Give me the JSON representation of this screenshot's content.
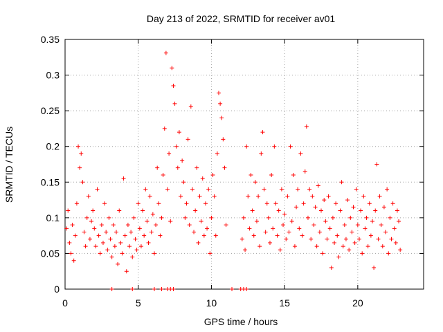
{
  "chart_data": {
    "type": "scatter",
    "title": "Day 213 of 2022, SRMTID for receiver av01",
    "xlabel": "GPS time / hours",
    "ylabel": "SRMTID / TECUs",
    "xlim": [
      0,
      24.5
    ],
    "ylim": [
      0,
      0.35
    ],
    "x_ticks": [
      0,
      5,
      10,
      15,
      20
    ],
    "y_ticks": [
      0,
      0.05,
      0.1,
      0.15,
      0.2,
      0.25,
      0.3,
      0.35
    ],
    "x_tick_labels": [
      "0",
      "5",
      "10",
      "15",
      "20"
    ],
    "y_tick_labels": [
      "0",
      "0.05",
      "0.1",
      "0.15",
      "0.2",
      "0.25",
      "0.3",
      "0.35"
    ],
    "grid": true,
    "marker": "+",
    "series_color": "#ff0000",
    "series": [
      {
        "name": "av01",
        "points": [
          [
            0.1,
            0.085
          ],
          [
            0.2,
            0.11
          ],
          [
            0.3,
            0.065
          ],
          [
            0.4,
            0.05
          ],
          [
            0.5,
            0.09
          ],
          [
            0.6,
            0.04
          ],
          [
            0.7,
            0.075
          ],
          [
            0.8,
            0.12
          ],
          [
            0.9,
            0.2
          ],
          [
            1.0,
            0.17
          ],
          [
            1.1,
            0.19
          ],
          [
            1.2,
            0.15
          ],
          [
            1.3,
            0.08
          ],
          [
            1.4,
            0.06
          ],
          [
            1.5,
            0.1
          ],
          [
            1.6,
            0.13
          ],
          [
            1.7,
            0.07
          ],
          [
            1.8,
            0.095
          ],
          [
            1.9,
            0.11
          ],
          [
            2.0,
            0.085
          ],
          [
            2.1,
            0.06
          ],
          [
            2.2,
            0.14
          ],
          [
            2.3,
            0.075
          ],
          [
            2.4,
            0.05
          ],
          [
            2.5,
            0.09
          ],
          [
            2.6,
            0.065
          ],
          [
            2.7,
            0.12
          ],
          [
            2.8,
            0.08
          ],
          [
            2.9,
            0.055
          ],
          [
            3.0,
            0.1
          ],
          [
            3.1,
            0.07
          ],
          [
            3.2,
            0.045
          ],
          [
            3.3,
            0.09
          ],
          [
            3.4,
            0.06
          ],
          [
            3.5,
            0.08
          ],
          [
            3.6,
            0.035
          ],
          [
            3.7,
            0.11
          ],
          [
            3.8,
            0.065
          ],
          [
            3.9,
            0.05
          ],
          [
            4.0,
            0.155
          ],
          [
            4.1,
            0.075
          ],
          [
            4.2,
            0.025
          ],
          [
            4.3,
            0.09
          ],
          [
            4.4,
            0.06
          ],
          [
            4.5,
            0.08
          ],
          [
            4.6,
            0.045
          ],
          [
            4.7,
            0.1
          ],
          [
            4.8,
            0.07
          ],
          [
            4.9,
            0.055
          ],
          [
            5.0,
            0.12
          ],
          [
            5.1,
            0.085
          ],
          [
            5.2,
            0.06
          ],
          [
            5.3,
            0.11
          ],
          [
            5.4,
            0.075
          ],
          [
            5.5,
            0.14
          ],
          [
            5.6,
            0.095
          ],
          [
            5.7,
            0.065
          ],
          [
            5.8,
            0.13
          ],
          [
            5.9,
            0.08
          ],
          [
            6.0,
            0.105
          ],
          [
            6.1,
            0.05
          ],
          [
            6.2,
            0.09
          ],
          [
            6.3,
            0.17
          ],
          [
            6.4,
            0.12
          ],
          [
            6.5,
            0.075
          ],
          [
            6.6,
            0.1
          ],
          [
            6.7,
            0.16
          ],
          [
            6.8,
            0.225
          ],
          [
            6.9,
            0.331
          ],
          [
            7.0,
            0.14
          ],
          [
            7.1,
            0.19
          ],
          [
            7.2,
            0.095
          ],
          [
            7.3,
            0.31
          ],
          [
            7.4,
            0.285
          ],
          [
            7.5,
            0.26
          ],
          [
            7.6,
            0.2
          ],
          [
            7.7,
            0.17
          ],
          [
            7.8,
            0.22
          ],
          [
            7.9,
            0.13
          ],
          [
            8.0,
            0.18
          ],
          [
            8.1,
            0.15
          ],
          [
            8.2,
            0.1
          ],
          [
            8.3,
            0.12
          ],
          [
            8.4,
            0.21
          ],
          [
            8.5,
            0.09
          ],
          [
            8.6,
            0.256
          ],
          [
            8.7,
            0.14
          ],
          [
            8.8,
            0.08
          ],
          [
            8.9,
            0.11
          ],
          [
            9.0,
            0.17
          ],
          [
            9.1,
            0.065
          ],
          [
            9.2,
            0.13
          ],
          [
            9.3,
            0.095
          ],
          [
            9.4,
            0.155
          ],
          [
            9.5,
            0.075
          ],
          [
            9.6,
            0.12
          ],
          [
            9.7,
            0.085
          ],
          [
            9.8,
            0.14
          ],
          [
            9.9,
            0.05
          ],
          [
            10.0,
            0.1
          ],
          [
            10.1,
            0.16
          ],
          [
            10.2,
            0.13
          ],
          [
            10.3,
            0.075
          ],
          [
            10.4,
            0.19
          ],
          [
            10.5,
            0.275
          ],
          [
            10.6,
            0.26
          ],
          [
            10.7,
            0.24
          ],
          [
            10.8,
            0.21
          ],
          [
            10.9,
            0.17
          ],
          [
            11.0,
            0.09
          ],
          [
            12.1,
            0.07
          ],
          [
            12.2,
            0.1
          ],
          [
            12.3,
            0.055
          ],
          [
            12.4,
            0.2
          ],
          [
            12.5,
            0.13
          ],
          [
            12.6,
            0.085
          ],
          [
            12.7,
            0.16
          ],
          [
            12.8,
            0.11
          ],
          [
            12.9,
            0.075
          ],
          [
            13.0,
            0.15
          ],
          [
            13.1,
            0.095
          ],
          [
            13.2,
            0.13
          ],
          [
            13.3,
            0.06
          ],
          [
            13.4,
            0.19
          ],
          [
            13.5,
            0.22
          ],
          [
            13.6,
            0.14
          ],
          [
            13.7,
            0.08
          ],
          [
            13.8,
            0.12
          ],
          [
            13.9,
            0.1
          ],
          [
            14.0,
            0.065
          ],
          [
            14.1,
            0.16
          ],
          [
            14.2,
            0.085
          ],
          [
            14.3,
            0.2
          ],
          [
            14.4,
            0.12
          ],
          [
            14.5,
            0.075
          ],
          [
            14.6,
            0.11
          ],
          [
            14.7,
            0.055
          ],
          [
            14.8,
            0.14
          ],
          [
            14.9,
            0.09
          ],
          [
            15.0,
            0.105
          ],
          [
            15.1,
            0.07
          ],
          [
            15.2,
            0.13
          ],
          [
            15.3,
            0.08
          ],
          [
            15.4,
            0.2
          ],
          [
            15.5,
            0.095
          ],
          [
            15.6,
            0.16
          ],
          [
            15.7,
            0.06
          ],
          [
            15.8,
            0.115
          ],
          [
            15.9,
            0.14
          ],
          [
            16.0,
            0.085
          ],
          [
            16.1,
            0.19
          ],
          [
            16.2,
            0.075
          ],
          [
            16.3,
            0.12
          ],
          [
            16.4,
            0.165
          ],
          [
            16.5,
            0.228
          ],
          [
            16.6,
            0.1
          ],
          [
            16.7,
            0.14
          ],
          [
            16.8,
            0.07
          ],
          [
            16.9,
            0.13
          ],
          [
            17.0,
            0.09
          ],
          [
            17.1,
            0.115
          ],
          [
            17.2,
            0.06
          ],
          [
            17.3,
            0.145
          ],
          [
            17.4,
            0.08
          ],
          [
            17.5,
            0.11
          ],
          [
            17.6,
            0.05
          ],
          [
            17.7,
            0.125
          ],
          [
            17.8,
            0.095
          ],
          [
            17.9,
            0.07
          ],
          [
            18.0,
            0.13
          ],
          [
            18.1,
            0.085
          ],
          [
            18.2,
            0.03
          ],
          [
            18.3,
            0.1
          ],
          [
            18.4,
            0.065
          ],
          [
            18.5,
            0.12
          ],
          [
            18.6,
            0.075
          ],
          [
            18.7,
            0.045
          ],
          [
            18.8,
            0.11
          ],
          [
            18.9,
            0.15
          ],
          [
            19.0,
            0.06
          ],
          [
            19.1,
            0.09
          ],
          [
            19.2,
            0.07
          ],
          [
            19.3,
            0.125
          ],
          [
            19.4,
            0.055
          ],
          [
            19.5,
            0.1
          ],
          [
            19.6,
            0.08
          ],
          [
            19.7,
            0.115
          ],
          [
            19.8,
            0.065
          ],
          [
            19.9,
            0.14
          ],
          [
            20.0,
            0.09
          ],
          [
            20.1,
            0.07
          ],
          [
            20.2,
            0.11
          ],
          [
            20.3,
            0.05
          ],
          [
            20.4,
            0.13
          ],
          [
            20.5,
            0.085
          ],
          [
            20.6,
            0.1
          ],
          [
            20.7,
            0.06
          ],
          [
            20.8,
            0.12
          ],
          [
            20.9,
            0.075
          ],
          [
            21.0,
            0.095
          ],
          [
            21.1,
            0.03
          ],
          [
            21.2,
            0.11
          ],
          [
            21.3,
            0.175
          ],
          [
            21.4,
            0.07
          ],
          [
            21.5,
            0.13
          ],
          [
            21.6,
            0.09
          ],
          [
            21.7,
            0.06
          ],
          [
            21.8,
            0.115
          ],
          [
            21.9,
            0.08
          ],
          [
            22.0,
            0.14
          ],
          [
            22.1,
            0.05
          ],
          [
            22.2,
            0.1
          ],
          [
            22.3,
            0.07
          ],
          [
            22.4,
            0.12
          ],
          [
            22.5,
            0.085
          ],
          [
            22.6,
            0.065
          ],
          [
            22.7,
            0.11
          ],
          [
            22.8,
            0.095
          ],
          [
            22.9,
            0.055
          ],
          [
            3.2,
            0
          ],
          [
            4.6,
            0
          ],
          [
            6.1,
            0
          ],
          [
            6.6,
            0
          ],
          [
            7.0,
            0
          ],
          [
            7.2,
            0
          ],
          [
            7.4,
            0
          ],
          [
            11.4,
            0
          ],
          [
            12.0,
            0
          ],
          [
            12.2,
            0
          ],
          [
            12.4,
            0
          ]
        ]
      }
    ]
  }
}
